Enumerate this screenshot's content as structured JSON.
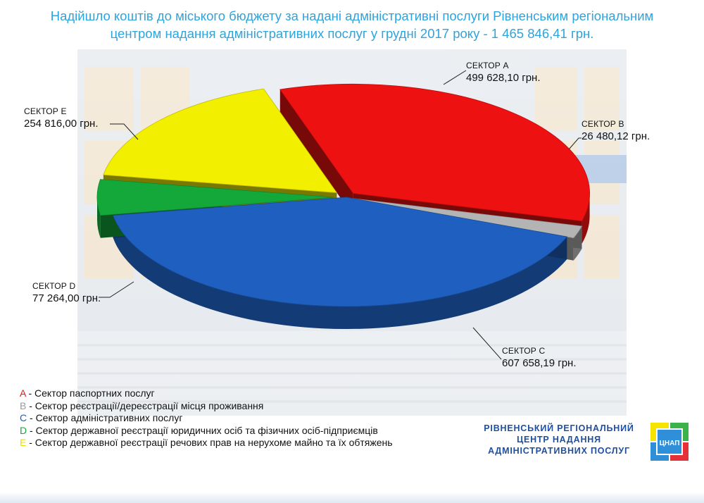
{
  "title": "Надійшло коштів до міського бюджету за надані адміністративні послуги Рівненським регіональним центром надання адміністративних послуг у грудні 2017 року - 1 465 846,41 грн.",
  "chart_data": {
    "type": "pie",
    "style": "3d",
    "title": "Надійшло коштів до міського бюджету за надані адміністративні послуги Рівненським регіональним центром надання адміністративних послуг у грудні 2017 року - 1 465 846,41 грн.",
    "total": 1465846.41,
    "slices": [
      {
        "key": "A",
        "name": "СЕКТОР А",
        "value": 499628.1,
        "value_label": "499 628,10 грн.",
        "color": "#ee1111"
      },
      {
        "key": "B",
        "name": "СЕКТОР В",
        "value": 26480.12,
        "value_label": "26 480,12 грн.",
        "color": "#b4b4b4"
      },
      {
        "key": "C",
        "name": "СЕКТОР С",
        "value": 607658.19,
        "value_label": "607 658,19 грн.",
        "color": "#1f5fbf"
      },
      {
        "key": "D",
        "name": "СЕКТОР D",
        "value": 77264.0,
        "value_label": "77 264,00 грн.",
        "color": "#14a83a"
      },
      {
        "key": "E",
        "name": "СЕКТОР Е",
        "value": 254816.0,
        "value_label": "254 816,00 грн.",
        "color": "#f2ef00"
      }
    ]
  },
  "legend": [
    {
      "key": "A",
      "text": " - Сектор паспортних послуг",
      "color": "#ee1111"
    },
    {
      "key": "B",
      "text": " - Сектор реєстрації/дереєстрації місця проживання",
      "color": "#9a9a9a"
    },
    {
      "key": "C",
      "text": " - Сектор адміністративних послуг",
      "color": "#1f5fbf"
    },
    {
      "key": "D",
      "text": " - Сектор державної реєстрації юридичних осіб та фізичних осіб-підприємців",
      "color": "#14a83a"
    },
    {
      "key": "E",
      "text": " - Сектор державної реєстрації речових прав на нерухоме майно та їх обтяжень",
      "color": "#e6e000"
    }
  ],
  "org": {
    "line1": "РІВНЕНСЬКИЙ РЕГІОНАЛЬНИЙ",
    "line2": "ЦЕНТР НАДАННЯ",
    "line3": "АДМІНІСТРАТИВНИХ ПОСЛУГ"
  },
  "logo_text": "ЦНАП",
  "logo_colors": {
    "yellow": "#f4e400",
    "green": "#3bb24a",
    "red": "#e53238",
    "blue": "#2f8fd8"
  }
}
